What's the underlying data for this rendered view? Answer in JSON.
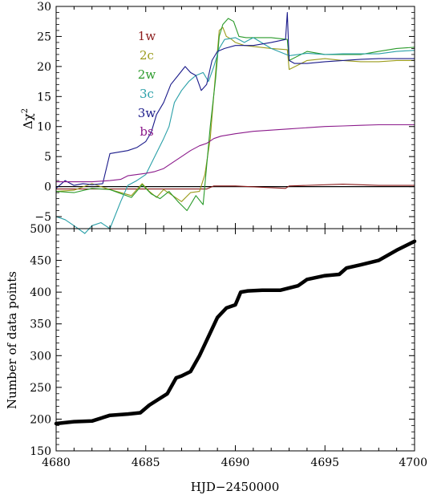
{
  "chart_data": [
    {
      "type": "line",
      "title": "",
      "xlabel": "",
      "ylabel": "Δχ²",
      "ylabel_main": "Δχ",
      "ylabel_sup": "2",
      "xlim": [
        4680,
        4700
      ],
      "ylim": [
        -7,
        30
      ],
      "yticks": [
        -5,
        0,
        5,
        10,
        15,
        20,
        25,
        30
      ],
      "ytick_labels": [
        "−5",
        "0",
        "5",
        "10",
        "15",
        "20",
        "25",
        "30"
      ],
      "legend_position": "upper-left-center",
      "series": [
        {
          "name": "1w",
          "color": "#8b1a1a",
          "x": [
            4680,
            4684,
            4688.4,
            4688.8,
            4690,
            4692.8,
            4693,
            4696,
            4698,
            4700
          ],
          "y": [
            -0.4,
            -0.4,
            -0.4,
            0.1,
            0.1,
            -0.3,
            0.1,
            0.4,
            0.2,
            0.2
          ]
        },
        {
          "name": "2c",
          "color": "#9b9b1b",
          "x": [
            4680,
            4681,
            4682,
            4683,
            4684.2,
            4684.8,
            4685.2,
            4685.6,
            4686,
            4686.5,
            4687,
            4687.5,
            4688,
            4688.3,
            4688.6,
            4688.9,
            4689.1,
            4689.3,
            4689.5,
            4689.8,
            4690,
            4690.5,
            4692,
            4692.9,
            4693,
            4694,
            4695,
            4696,
            4697,
            4698,
            4699,
            4700
          ],
          "y": [
            -0.8,
            -0.6,
            0.5,
            -0.5,
            -1.5,
            0.5,
            -0.8,
            -1.8,
            -0.5,
            -1.5,
            -2.5,
            -1.0,
            -0.8,
            2.0,
            8.0,
            19.0,
            26.0,
            26.5,
            25.0,
            24.5,
            24.0,
            23.5,
            23.0,
            22.8,
            19.5,
            21.0,
            21.3,
            21.0,
            20.8,
            20.8,
            21.0,
            21.0
          ]
        },
        {
          "name": "2w",
          "color": "#2a9a2a",
          "x": [
            4680,
            4681,
            4682,
            4683,
            4684.2,
            4684.8,
            4685.3,
            4685.8,
            4686.3,
            4686.8,
            4687.3,
            4687.8,
            4688.2,
            4688.6,
            4688.9,
            4689.1,
            4689.3,
            4689.6,
            4689.9,
            4690.2,
            4690.6,
            4692,
            4692.9,
            4693,
            4694,
            4695,
            4696,
            4697,
            4698,
            4699,
            4700
          ],
          "y": [
            -0.8,
            -1.0,
            -0.3,
            -0.5,
            -1.8,
            0.3,
            -1.2,
            -2.0,
            -0.8,
            -2.5,
            -4.0,
            -1.5,
            -3.0,
            10.0,
            18.0,
            25.0,
            27.0,
            28.0,
            27.5,
            25.0,
            24.8,
            24.8,
            24.5,
            21.0,
            22.5,
            22.0,
            22.0,
            22.0,
            22.5,
            23.0,
            23.2
          ]
        },
        {
          "name": "3c",
          "color": "#2aa0a8",
          "x": [
            4680,
            4680.5,
            4681,
            4681.6,
            4682,
            4682.5,
            4683,
            4683.6,
            4684,
            4684.5,
            4685,
            4685.5,
            4686,
            4686.3,
            4686.6,
            4687,
            4687.4,
            4687.8,
            4688.2,
            4688.5,
            4688.8,
            4689.1,
            4689.4,
            4690,
            4690.5,
            4691,
            4692,
            4693,
            4694,
            4695,
            4696,
            4697,
            4698,
            4699,
            4700
          ],
          "y": [
            -5.0,
            -5.5,
            -6.5,
            -7.8,
            -6.5,
            -6.0,
            -7.0,
            -2.5,
            0.2,
            1.0,
            2.0,
            5.0,
            8.0,
            10.0,
            14.0,
            16.0,
            17.5,
            18.5,
            19.0,
            17.5,
            20.0,
            23.0,
            24.5,
            24.8,
            24.0,
            24.8,
            23.0,
            21.8,
            22.2,
            22.0,
            22.1,
            22.1,
            22.1,
            22.5,
            22.7
          ]
        },
        {
          "name": "3w",
          "color": "#1a1a8a",
          "x": [
            4680,
            4680.5,
            4681,
            4681.5,
            4682,
            4682.6,
            4683,
            4684,
            4684.5,
            4685,
            4685.3,
            4685.6,
            4686,
            4686.4,
            4686.8,
            4687.2,
            4687.5,
            4687.8,
            4688.1,
            4688.4,
            4688.7,
            4689,
            4689.4,
            4690,
            4691,
            4692,
            4692.8,
            4692.9,
            4693,
            4693.3,
            4694,
            4695,
            4696,
            4697,
            4698,
            4699,
            4700
          ],
          "y": [
            -0.3,
            1.0,
            0.2,
            0.5,
            0.3,
            0.5,
            5.5,
            6.0,
            6.5,
            7.5,
            9.0,
            12.0,
            14.0,
            17.0,
            18.5,
            20.0,
            19.0,
            18.5,
            16.0,
            17.0,
            21.0,
            22.5,
            23.0,
            23.5,
            23.5,
            24.0,
            24.5,
            29.0,
            21.0,
            20.5,
            20.5,
            20.8,
            21.0,
            21.2,
            21.3,
            21.3,
            21.3
          ]
        },
        {
          "name": "bs",
          "color": "#8b1a8b",
          "x": [
            4680,
            4681,
            4682,
            4683,
            4683.6,
            4684,
            4685,
            4685.5,
            4686,
            4686.5,
            4687,
            4687.5,
            4688,
            4688.4,
            4688.8,
            4689.2,
            4689.6,
            4690,
            4691,
            4692,
            4693,
            4694,
            4695,
            4696,
            4697,
            4698,
            4699,
            4700
          ],
          "y": [
            0.8,
            0.8,
            0.8,
            1.0,
            1.2,
            1.8,
            2.2,
            2.5,
            3.0,
            4.0,
            5.0,
            6.0,
            6.8,
            7.2,
            8.0,
            8.4,
            8.6,
            8.8,
            9.2,
            9.4,
            9.6,
            9.8,
            10.0,
            10.1,
            10.2,
            10.3,
            10.3,
            10.3
          ]
        }
      ],
      "hline": {
        "y": 0,
        "color": "#000000"
      }
    },
    {
      "type": "line",
      "title": "",
      "xlabel": "HJD−2450000",
      "ylabel": "Number of data points",
      "xlim": [
        4680,
        4700
      ],
      "ylim": [
        150,
        500
      ],
      "xticks": [
        4680,
        4685,
        4690,
        4695,
        4700
      ],
      "xtick_labels": [
        "4680",
        "4685",
        "4690",
        "4695",
        "4700"
      ],
      "yticks": [
        150,
        200,
        250,
        300,
        350,
        400,
        450,
        500
      ],
      "ytick_labels": [
        "150",
        "200",
        "250",
        "300",
        "350",
        "400",
        "450",
        "500"
      ],
      "series": [
        {
          "name": "",
          "color": "#000000",
          "x": [
            4680,
            4681,
            4682,
            4683,
            4684,
            4684.7,
            4685.2,
            4685.7,
            4686.2,
            4686.7,
            4687,
            4687.5,
            4688,
            4688.5,
            4689,
            4689.5,
            4690,
            4690.3,
            4690.7,
            4691.5,
            4692.5,
            4693.5,
            4694,
            4695,
            4695.8,
            4696.2,
            4697,
            4698,
            4699,
            4700
          ],
          "y": [
            193,
            196,
            197,
            206,
            208,
            210,
            222,
            231,
            240,
            265,
            268,
            275,
            300,
            330,
            360,
            375,
            380,
            400,
            402,
            403,
            403,
            410,
            420,
            426,
            428,
            438,
            443,
            450,
            466,
            480
          ]
        }
      ]
    }
  ]
}
